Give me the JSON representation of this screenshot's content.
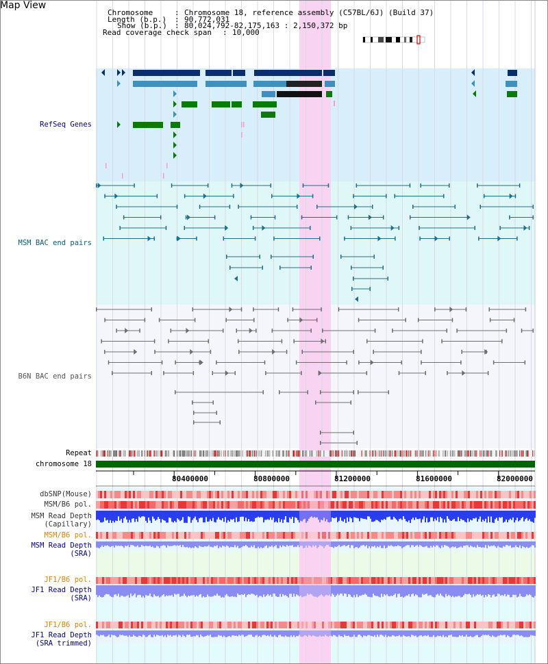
{
  "page": {
    "title": "Map View"
  },
  "header": {
    "chromosome_label": "Chromosome",
    "chromosome_value": "Chromosome 18, reference assembly (C57BL/6J) (Build 37)",
    "length_label": "Length (b.p.)",
    "length_value": "90,772,031",
    "show_label": "Show (b.p.)",
    "show_value": "80,024,792-82,175,163 : 2,150,372 bp",
    "coverage_label": "Read coverage check span",
    "coverage_value": "10,000"
  },
  "tracks": {
    "refseq": "RefSeq Genes",
    "msm_bac": "MSM BAC end pairs",
    "b6n_bac": "B6N BAC end pairs",
    "repeat": "Repeat",
    "chromosome": "chromosome 18",
    "dbsnp": "dbSNP(Mouse)",
    "msm_pol1": "MSM/B6 pol.",
    "msm_depth_cap": "MSM Read Depth\n(Capillary)",
    "msm_pol2": "MSM/B6 pol.",
    "msm_depth_sra": "MSM Read Depth\n(SRA)",
    "jf1_pol1": "JF1/B6 pol.",
    "jf1_depth_sra": "JF1 Read Depth\n(SRA)",
    "jf1_pol2": "JF1/B6 pol.",
    "jf1_depth_trim": "JF1 Read Depth\n(SRA trimmed)"
  },
  "axis": {
    "ticks": [
      "80400000",
      "80800000",
      "81200000",
      "81600000",
      "82000000"
    ]
  },
  "colors": {
    "refseq_bg": "#d8eefa",
    "msm_bg": "#e0f7f7",
    "b6n_bg": "#f5f6fb",
    "highlight": "#f9d3f2",
    "chromosome": "#006400"
  }
}
